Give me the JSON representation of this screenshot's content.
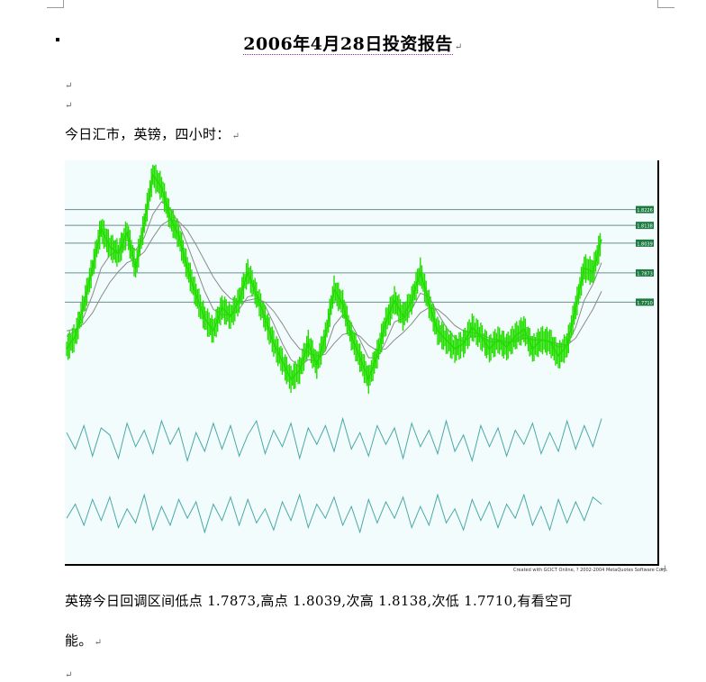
{
  "document": {
    "title": "2006年4月28日投资报告",
    "paragraph_mark": "↵",
    "intro": "今日汇市，英镑，四小时：",
    "analysis_line1": "英镑今日回调区间低点 1.7873,高点 1.8039,次高 1.8138,次低 1.7710,有看空可",
    "analysis_line2": "能。"
  },
  "chart_data": {
    "type": "line",
    "title": "",
    "price_levels": [
      {
        "label": "1.8226",
        "value": 1.8226
      },
      {
        "label": "1.8138",
        "value": 1.8138
      },
      {
        "label": "1.8039",
        "value": 1.8039
      },
      {
        "label": "1.7873",
        "value": 1.7873
      },
      {
        "label": "1.7710",
        "value": 1.771
      }
    ],
    "price_series": [
      1.745,
      1.752,
      1.77,
      1.79,
      1.812,
      1.802,
      1.798,
      1.81,
      1.79,
      1.815,
      1.842,
      1.835,
      1.818,
      1.808,
      1.79,
      1.775,
      1.762,
      1.755,
      1.768,
      1.763,
      1.772,
      1.788,
      1.775,
      1.762,
      1.748,
      1.738,
      1.728,
      1.733,
      1.748,
      1.736,
      1.752,
      1.778,
      1.77,
      1.752,
      1.74,
      1.728,
      1.742,
      1.76,
      1.772,
      1.763,
      1.772,
      1.788,
      1.77,
      1.755,
      1.75,
      1.745,
      1.748,
      1.757,
      1.752,
      1.745,
      1.75,
      1.746,
      1.752,
      1.756,
      1.745,
      1.75,
      1.749,
      1.741,
      1.747,
      1.768,
      1.79,
      1.788,
      1.806
    ],
    "ma_fast": [
      1.752,
      1.755,
      1.763,
      1.775,
      1.79,
      1.797,
      1.8,
      1.803,
      1.8,
      1.807,
      1.82,
      1.827,
      1.823,
      1.815,
      1.803,
      1.79,
      1.777,
      1.767,
      1.764,
      1.764,
      1.767,
      1.774,
      1.775,
      1.769,
      1.759,
      1.748,
      1.739,
      1.735,
      1.739,
      1.738,
      1.744,
      1.758,
      1.764,
      1.759,
      1.75,
      1.74,
      1.74,
      1.749,
      1.76,
      1.762,
      1.767,
      1.776,
      1.774,
      1.765,
      1.757,
      1.751,
      1.749,
      1.752,
      1.752,
      1.749,
      1.749,
      1.748,
      1.75,
      1.753,
      1.75,
      1.75,
      1.749,
      1.746,
      1.747,
      1.757,
      1.772,
      1.781,
      1.793
    ],
    "ma_slow": [
      1.755,
      1.756,
      1.759,
      1.765,
      1.774,
      1.782,
      1.788,
      1.793,
      1.795,
      1.799,
      1.807,
      1.814,
      1.817,
      1.816,
      1.811,
      1.803,
      1.794,
      1.785,
      1.778,
      1.773,
      1.771,
      1.772,
      1.773,
      1.771,
      1.766,
      1.759,
      1.751,
      1.745,
      1.743,
      1.741,
      1.742,
      1.748,
      1.753,
      1.754,
      1.752,
      1.747,
      1.744,
      1.745,
      1.75,
      1.754,
      1.759,
      1.765,
      1.768,
      1.767,
      1.763,
      1.758,
      1.755,
      1.754,
      1.753,
      1.751,
      1.75,
      1.749,
      1.749,
      1.751,
      1.75,
      1.75,
      1.749,
      1.748,
      1.747,
      1.751,
      1.759,
      1.767,
      1.777
    ],
    "indicator1": [
      0.3,
      -0.4,
      0.6,
      -0.7,
      0.5,
      0.2,
      -0.8,
      0.7,
      -0.3,
      0.4,
      -0.6,
      0.8,
      -0.2,
      0.5,
      -0.9,
      0.3,
      -0.5,
      0.7,
      -0.4,
      0.6,
      -0.7,
      0.2,
      0.8,
      -0.6,
      0.4,
      -0.3,
      0.7,
      -0.8,
      0.5,
      -0.2,
      0.6,
      -0.5,
      0.9,
      -0.4,
      0.3,
      -0.7,
      0.6,
      -0.2,
      0.5,
      -0.8,
      0.7,
      -0.3,
      0.4,
      -0.6,
      0.8,
      -0.5,
      0.2,
      -0.9,
      0.6,
      -0.3,
      0.5,
      -0.7,
      0.4,
      -0.2,
      0.7,
      -0.6,
      0.3,
      -0.5,
      0.8,
      -0.4,
      0.6,
      -0.3,
      0.9
    ],
    "indicator2": [
      -0.2,
      0.4,
      -0.5,
      0.6,
      -0.3,
      0.7,
      -0.6,
      0.2,
      -0.4,
      0.8,
      -0.7,
      0.3,
      -0.5,
      0.6,
      -0.2,
      0.5,
      -0.8,
      0.4,
      -0.3,
      0.7,
      -0.5,
      0.6,
      -0.4,
      0.2,
      -0.7,
      0.5,
      -0.3,
      0.8,
      -0.6,
      0.4,
      -0.2,
      0.7,
      -0.5,
      0.3,
      -0.8,
      0.6,
      -0.4,
      0.5,
      -0.2,
      0.7,
      -0.6,
      0.3,
      -0.5,
      0.8,
      -0.4,
      0.2,
      -0.7,
      0.6,
      -0.3,
      0.5,
      -0.6,
      0.4,
      -0.2,
      0.8,
      -0.5,
      0.3,
      -0.7,
      0.6,
      -0.4,
      0.5,
      -0.3,
      0.7,
      0.4
    ],
    "credit": "Created with GCICT Online, ? 2002-2004 MetaQuotes Software Corp.",
    "colors": {
      "price": "#22dd00",
      "ma": "#8a8a8a",
      "indicator": "#4aa8a8",
      "level_line": "#6a8e8e",
      "level_tag": "#1c7a40",
      "background": "#f3fcfc"
    }
  }
}
